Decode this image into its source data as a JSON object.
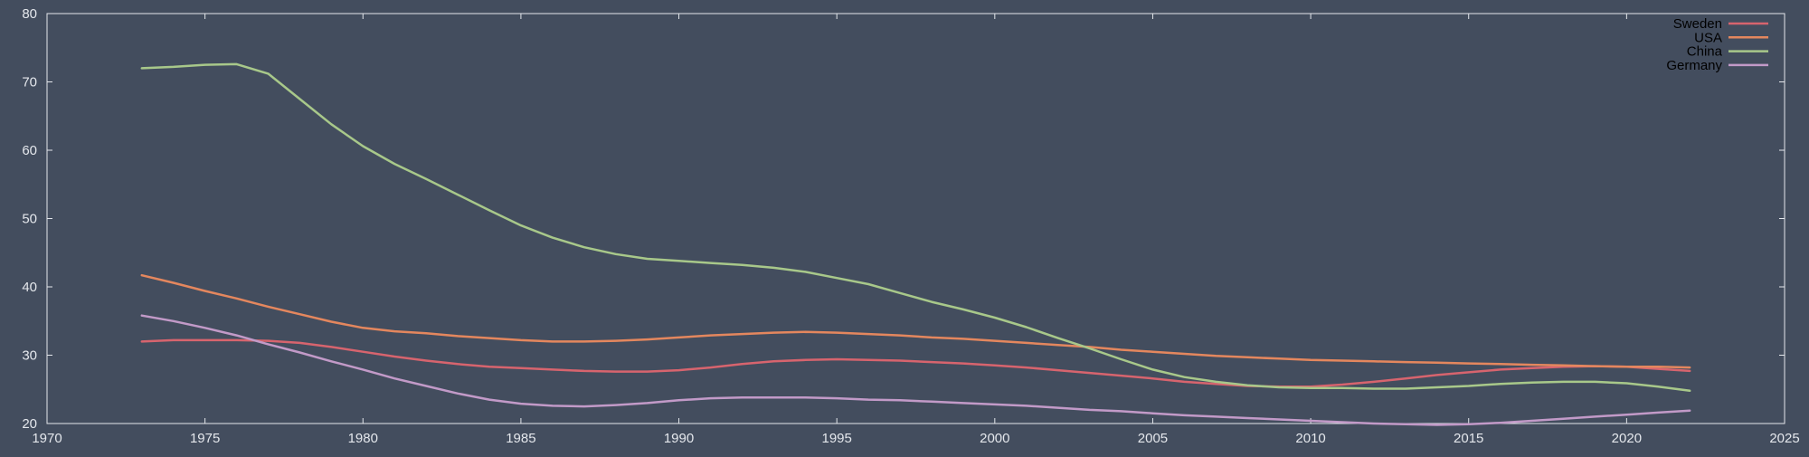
{
  "chart_data": {
    "type": "line",
    "title": "",
    "xlabel": "",
    "ylabel": "",
    "xlim": [
      1970,
      2025
    ],
    "ylim": [
      20,
      80
    ],
    "x_ticks": [
      1970,
      1975,
      1980,
      1985,
      1990,
      1995,
      2000,
      2005,
      2010,
      2015,
      2020,
      2025
    ],
    "y_ticks": [
      20,
      30,
      40,
      50,
      60,
      70,
      80
    ],
    "grid": false,
    "legend_position": "top-right",
    "x": [
      1973,
      1974,
      1975,
      1976,
      1977,
      1978,
      1979,
      1980,
      1981,
      1982,
      1983,
      1984,
      1985,
      1986,
      1987,
      1988,
      1989,
      1990,
      1991,
      1992,
      1993,
      1994,
      1995,
      1996,
      1997,
      1998,
      1999,
      2000,
      2001,
      2002,
      2003,
      2004,
      2005,
      2006,
      2007,
      2008,
      2009,
      2010,
      2011,
      2012,
      2013,
      2014,
      2015,
      2016,
      2017,
      2018,
      2019,
      2020,
      2021,
      2022
    ],
    "series": [
      {
        "name": "Sweden",
        "color": "#d7646e",
        "values": [
          32.0,
          32.2,
          32.2,
          32.2,
          32.1,
          31.8,
          31.2,
          30.5,
          29.8,
          29.2,
          28.7,
          28.3,
          28.1,
          27.9,
          27.7,
          27.6,
          27.6,
          27.8,
          28.2,
          28.7,
          29.1,
          29.3,
          29.4,
          29.3,
          29.2,
          29.0,
          28.8,
          28.5,
          28.2,
          27.8,
          27.4,
          27.0,
          26.6,
          26.1,
          25.8,
          25.5,
          25.4,
          25.4,
          25.7,
          26.1,
          26.6,
          27.1,
          27.5,
          27.9,
          28.1,
          28.3,
          28.4,
          28.3,
          28.0,
          27.7
        ]
      },
      {
        "name": "USA",
        "color": "#e4875e",
        "values": [
          41.7,
          40.6,
          39.4,
          38.3,
          37.1,
          36.0,
          34.9,
          34.0,
          33.5,
          33.2,
          32.8,
          32.5,
          32.2,
          32.0,
          32.0,
          32.1,
          32.3,
          32.6,
          32.9,
          33.1,
          33.3,
          33.4,
          33.3,
          33.1,
          32.9,
          32.6,
          32.4,
          32.1,
          31.8,
          31.5,
          31.2,
          30.8,
          30.5,
          30.2,
          29.9,
          29.7,
          29.5,
          29.3,
          29.2,
          29.1,
          29.0,
          28.9,
          28.8,
          28.7,
          28.6,
          28.5,
          28.4,
          28.3,
          28.3,
          28.2
        ]
      },
      {
        "name": "China",
        "color": "#a8c88a",
        "values": [
          72.0,
          72.2,
          72.5,
          72.6,
          71.2,
          67.5,
          63.8,
          60.6,
          58.0,
          55.8,
          53.5,
          51.2,
          49.0,
          47.2,
          45.8,
          44.8,
          44.1,
          43.8,
          43.5,
          43.2,
          42.8,
          42.2,
          41.3,
          40.4,
          39.1,
          37.8,
          36.7,
          35.5,
          34.1,
          32.5,
          31.0,
          29.4,
          27.9,
          26.8,
          26.1,
          25.6,
          25.3,
          25.2,
          25.2,
          25.1,
          25.1,
          25.3,
          25.5,
          25.8,
          26.0,
          26.1,
          26.1,
          25.9,
          25.4,
          24.8
        ]
      },
      {
        "name": "Germany",
        "color": "#c29ac8",
        "values": [
          35.8,
          35.0,
          34.0,
          32.9,
          31.6,
          30.4,
          29.1,
          27.9,
          26.6,
          25.5,
          24.4,
          23.5,
          22.9,
          22.6,
          22.5,
          22.7,
          23.0,
          23.4,
          23.7,
          23.8,
          23.8,
          23.8,
          23.7,
          23.5,
          23.4,
          23.2,
          23.0,
          22.8,
          22.6,
          22.3,
          22.0,
          21.8,
          21.5,
          21.2,
          21.0,
          20.8,
          20.6,
          20.4,
          20.2,
          20.0,
          19.9,
          19.8,
          19.9,
          20.1,
          20.4,
          20.7,
          21.0,
          21.3,
          21.6,
          21.9
        ]
      }
    ]
  }
}
